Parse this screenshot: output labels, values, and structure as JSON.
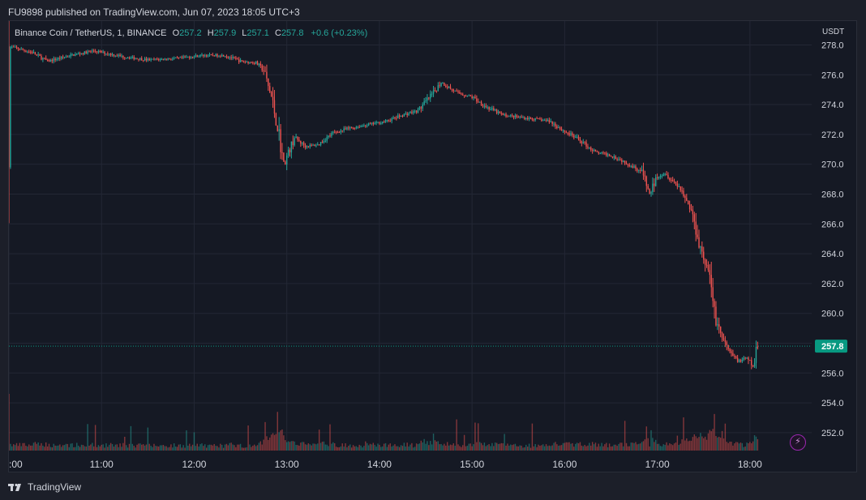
{
  "header": {
    "publisher_line": "FU9898 published on TradingView.com, Jun 07, 2023 18:05 UTC+3"
  },
  "legend": {
    "symbol": "Binance Coin / TetherUS, 1, BINANCE",
    "o_label": "O",
    "o_value": "257.2",
    "h_label": "H",
    "h_value": "257.9",
    "l_label": "L",
    "l_value": "257.1",
    "c_label": "C",
    "c_value": "257.8",
    "change": "+0.6 (+0.23%)"
  },
  "footer": {
    "brand": "TradingView"
  },
  "colors": {
    "up": "#26a69a",
    "down": "#ef5350",
    "background": "#151924",
    "grid": "#232735",
    "last_price_tag": "#089981",
    "bolt": "#9c27b0"
  },
  "icons": [
    "tradingview-logo-icon",
    "lightning-bolt-icon"
  ],
  "chart_data": {
    "type": "candlestick",
    "unit": "USDT",
    "y_ticks": [
      "278.0",
      "276.0",
      "274.0",
      "272.0",
      "270.0",
      "268.0",
      "266.0",
      "264.0",
      "262.0",
      "260.0",
      "258.0",
      "256.0",
      "254.0",
      "252.0"
    ],
    "ylim": [
      250.8,
      279.6
    ],
    "x_ticks": [
      ":00",
      "11:00",
      "12:00",
      "13:00",
      "14:00",
      "15:00",
      "16:00",
      "17:00",
      "18:00"
    ],
    "x_start": "10:00",
    "x_end": "18:40",
    "last_price": "257.8",
    "grid": true,
    "price_path": [
      [
        "10:00",
        277.9
      ],
      [
        "10:15",
        277.5
      ],
      [
        "10:25",
        276.9
      ],
      [
        "10:40",
        277.3
      ],
      [
        "10:55",
        277.6
      ],
      [
        "11:15",
        277.2
      ],
      [
        "11:30",
        277.0
      ],
      [
        "11:50",
        277.1
      ],
      [
        "12:05",
        277.3
      ],
      [
        "12:20",
        277.3
      ],
      [
        "12:30",
        276.9
      ],
      [
        "12:40",
        276.8
      ],
      [
        "12:45",
        276.3
      ],
      [
        "12:50",
        274.5
      ],
      [
        "12:55",
        272.0
      ],
      [
        "12:58",
        270.0
      ],
      [
        "13:05",
        271.8
      ],
      [
        "13:12",
        271.2
      ],
      [
        "13:20",
        271.3
      ],
      [
        "13:30",
        272.1
      ],
      [
        "13:40",
        272.4
      ],
      [
        "13:50",
        272.6
      ],
      [
        "14:05",
        272.9
      ],
      [
        "14:15",
        273.3
      ],
      [
        "14:25",
        273.6
      ],
      [
        "14:35",
        274.8
      ],
      [
        "14:40",
        275.5
      ],
      [
        "14:50",
        274.8
      ],
      [
        "15:00",
        274.5
      ],
      [
        "15:10",
        273.8
      ],
      [
        "15:20",
        273.3
      ],
      [
        "15:35",
        273.1
      ],
      [
        "15:50",
        272.9
      ],
      [
        "16:00",
        272.2
      ],
      [
        "16:10",
        271.6
      ],
      [
        "16:20",
        270.8
      ],
      [
        "16:30",
        270.6
      ],
      [
        "16:40",
        270.1
      ],
      [
        "16:50",
        269.5
      ],
      [
        "16:55",
        268.0
      ],
      [
        "17:00",
        269.2
      ],
      [
        "17:05",
        269.4
      ],
      [
        "17:15",
        268.4
      ],
      [
        "17:22",
        266.9
      ],
      [
        "17:28",
        264.4
      ],
      [
        "17:33",
        262.8
      ],
      [
        "17:38",
        259.6
      ],
      [
        "17:43",
        258.1
      ],
      [
        "17:48",
        257.2
      ],
      [
        "17:53",
        256.8
      ],
      [
        "17:58",
        257.0
      ],
      [
        "18:02",
        256.4
      ],
      [
        "18:05",
        257.8
      ]
    ],
    "volume_scale_note": "relative volume bars shown at bottom"
  }
}
